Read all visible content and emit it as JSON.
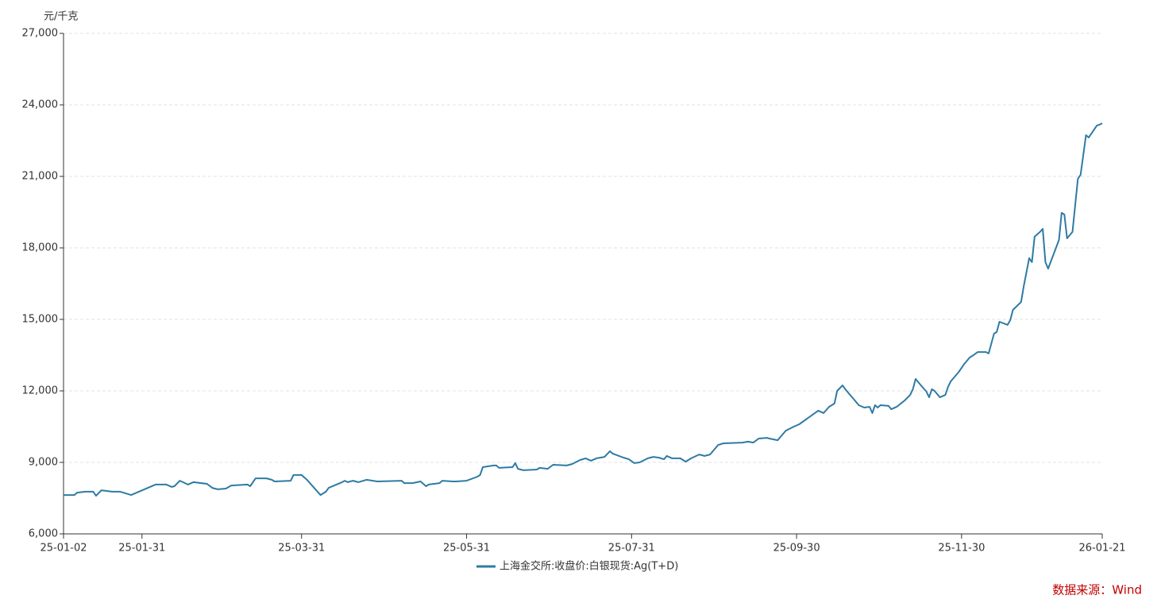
{
  "chart_data": {
    "type": "line",
    "y_label": "元/千克",
    "source": "数据来源：Wind",
    "x": [
      "25-01-02",
      "25-01-06",
      "25-01-07",
      "25-01-10",
      "25-01-13",
      "25-01-14",
      "25-01-16",
      "25-01-20",
      "25-01-23",
      "25-01-27",
      "25-02-05",
      "25-02-09",
      "25-02-11",
      "25-02-12",
      "25-02-14",
      "25-02-17",
      "25-02-19",
      "25-02-24",
      "25-02-26",
      "25-02-28",
      "25-03-03",
      "25-03-05",
      "25-03-11",
      "25-03-12",
      "25-03-14",
      "25-03-18",
      "25-03-20",
      "25-03-21",
      "25-03-27",
      "25-03-28",
      "25-03-31",
      "25-04-01",
      "25-04-02",
      "25-04-07",
      "25-04-09",
      "25-04-10",
      "25-04-15",
      "25-04-16",
      "25-04-17",
      "25-04-19",
      "25-04-21",
      "25-04-24",
      "25-04-28",
      "25-05-07",
      "25-05-08",
      "25-05-11",
      "25-05-14",
      "25-05-16",
      "25-05-17",
      "25-05-21",
      "25-05-22",
      "25-05-26",
      "25-05-27",
      "25-05-31",
      "25-06-04",
      "25-06-05",
      "25-06-06",
      "25-06-10",
      "25-06-11",
      "25-06-12",
      "25-06-17",
      "25-06-18",
      "25-06-19",
      "25-06-21",
      "25-06-26",
      "25-06-27",
      "25-06-30",
      "25-07-02",
      "25-07-07",
      "25-07-09",
      "25-07-12",
      "25-07-14",
      "25-07-16",
      "25-07-18",
      "25-07-21",
      "25-07-23",
      "25-07-24",
      "25-07-28",
      "25-07-30",
      "25-08-01",
      "25-08-03",
      "25-08-06",
      "25-08-08",
      "25-08-10",
      "25-08-12",
      "25-08-13",
      "25-08-15",
      "25-08-18",
      "25-08-20",
      "25-08-22",
      "25-08-25",
      "25-08-27",
      "25-08-29",
      "25-09-01",
      "25-09-03",
      "25-09-10",
      "25-09-12",
      "25-09-14",
      "25-09-16",
      "25-09-19",
      "25-09-20",
      "25-09-23",
      "25-09-26",
      "25-09-29",
      "25-10-01",
      "25-10-08",
      "25-10-10",
      "25-10-12",
      "25-10-14",
      "25-10-15",
      "25-10-17",
      "25-10-18",
      "25-10-20",
      "25-10-21",
      "25-10-23",
      "25-10-25",
      "25-10-27",
      "25-10-28",
      "25-10-29",
      "25-10-30",
      "25-10-31",
      "25-11-03",
      "25-11-04",
      "25-11-06",
      "25-11-09",
      "25-11-11",
      "25-11-12",
      "25-11-13",
      "25-11-15",
      "25-11-17",
      "25-11-18",
      "25-11-19",
      "25-11-20",
      "25-11-22",
      "25-11-24",
      "25-11-25",
      "25-11-26",
      "25-11-29",
      "25-12-01",
      "25-12-03",
      "25-12-04",
      "25-12-06",
      "25-12-09",
      "25-12-10",
      "25-12-12",
      "25-12-13",
      "25-12-14",
      "25-12-17",
      "25-12-18",
      "25-12-19",
      "25-12-22",
      "25-12-23",
      "25-12-25",
      "25-12-26",
      "25-12-27",
      "25-12-29",
      "25-12-30",
      "25-12-31",
      "26-01-01",
      "26-01-05",
      "26-01-06",
      "26-01-07",
      "26-01-08",
      "26-01-10",
      "26-01-12",
      "26-01-13",
      "26-01-15",
      "26-01-16",
      "26-01-19",
      "26-01-20",
      "26-01-21"
    ],
    "series": [
      {
        "name": "上海金交所:收盘价:白银现货:Ag(T+D)",
        "color": "#2e7ba3",
        "values": [
          7630,
          7630,
          7730,
          7770,
          7770,
          7600,
          7830,
          7770,
          7770,
          7630,
          8070,
          8070,
          7970,
          8000,
          8230,
          8070,
          8170,
          8100,
          7930,
          7870,
          7900,
          8030,
          8070,
          8000,
          8330,
          8330,
          8270,
          8200,
          8230,
          8470,
          8470,
          8370,
          8270,
          7630,
          7770,
          7930,
          8170,
          8230,
          8170,
          8230,
          8170,
          8270,
          8200,
          8230,
          8130,
          8130,
          8200,
          8000,
          8070,
          8130,
          8230,
          8200,
          8200,
          8230,
          8400,
          8470,
          8800,
          8870,
          8870,
          8770,
          8800,
          8970,
          8730,
          8670,
          8700,
          8770,
          8730,
          8900,
          8870,
          8930,
          9100,
          9170,
          9070,
          9170,
          9230,
          9470,
          9370,
          9200,
          9130,
          8970,
          9000,
          9170,
          9230,
          9200,
          9130,
          9270,
          9170,
          9170,
          9030,
          9170,
          9330,
          9270,
          9330,
          9730,
          9800,
          9830,
          9870,
          9830,
          10000,
          10030,
          10000,
          9930,
          10330,
          10500,
          10600,
          11170,
          11070,
          11330,
          11470,
          12000,
          12230,
          12070,
          11800,
          11670,
          11400,
          11300,
          11330,
          11070,
          11400,
          11300,
          11400,
          11370,
          11230,
          11330,
          11600,
          11830,
          12070,
          12500,
          12230,
          11970,
          11730,
          12070,
          12000,
          11730,
          11830,
          12170,
          12400,
          12800,
          13130,
          13400,
          13470,
          13630,
          13630,
          13570,
          14400,
          14470,
          14900,
          14770,
          14970,
          15400,
          15730,
          16400,
          17570,
          17400,
          18470,
          18670,
          18800,
          17400,
          17130,
          18330,
          19470,
          19400,
          18400,
          18670,
          20900,
          21070,
          22730,
          22630,
          23130,
          23170,
          23230
        ]
      }
    ],
    "xlim": [
      "25-01-02",
      "26-01-21"
    ],
    "xticks": [
      "25-01-02",
      "25-01-31",
      "25-03-31",
      "25-05-31",
      "25-07-31",
      "25-09-30",
      "25-11-30",
      "26-01-21"
    ],
    "ylim": [
      6000,
      27000
    ],
    "yticks": [
      {
        "value": 6000,
        "label": "6,000"
      },
      {
        "value": 9000,
        "label": "9,000"
      },
      {
        "value": 12000,
        "label": "12,000"
      },
      {
        "value": 15000,
        "label": "15,000"
      },
      {
        "value": 18000,
        "label": "18,000"
      },
      {
        "value": 21000,
        "label": "21,000"
      },
      {
        "value": 24000,
        "label": "24,000"
      },
      {
        "value": 27000,
        "label": "27,000"
      }
    ],
    "grid": true,
    "legend": "bottom"
  }
}
